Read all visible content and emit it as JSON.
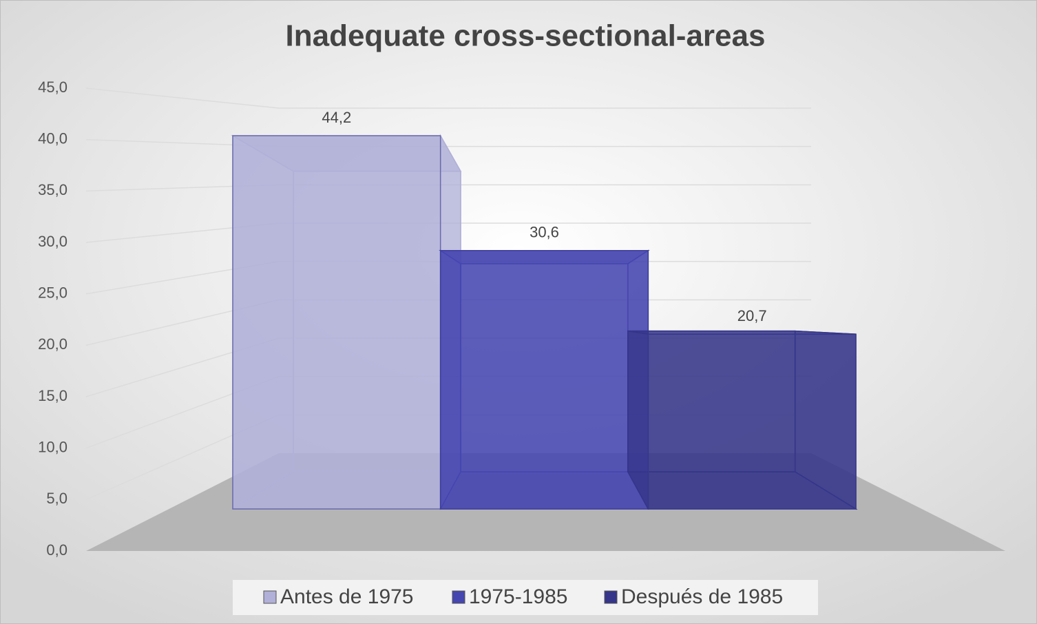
{
  "chart_data": {
    "type": "bar3d",
    "title": "Inadequate cross-sectional-areas",
    "categories": [
      null
    ],
    "series": [
      {
        "name": "Antes de 1975",
        "color": "#b0b0d8",
        "values": [
          44.2
        ],
        "value_labels": [
          "44,2"
        ]
      },
      {
        "name": "1975-1985",
        "color": "#4646b0",
        "values": [
          30.6
        ],
        "value_labels": [
          "30,6"
        ]
      },
      {
        "name": "Después de 1985",
        "color": "#35358a",
        "values": [
          20.7
        ],
        "value_labels": [
          "20,7"
        ]
      }
    ],
    "ylim": [
      0,
      45
    ],
    "yticks": [
      {
        "value": 0,
        "label": "0,0"
      },
      {
        "value": 5,
        "label": "5,0"
      },
      {
        "value": 10,
        "label": "10,0"
      },
      {
        "value": 15,
        "label": "15,0"
      },
      {
        "value": 20,
        "label": "20,0"
      },
      {
        "value": 25,
        "label": "25,0"
      },
      {
        "value": 30,
        "label": "30,0"
      },
      {
        "value": 35,
        "label": "35,0"
      },
      {
        "value": 40,
        "label": "40,0"
      },
      {
        "value": 45,
        "label": "45,0"
      }
    ],
    "grid": true,
    "legend": "bottom"
  }
}
